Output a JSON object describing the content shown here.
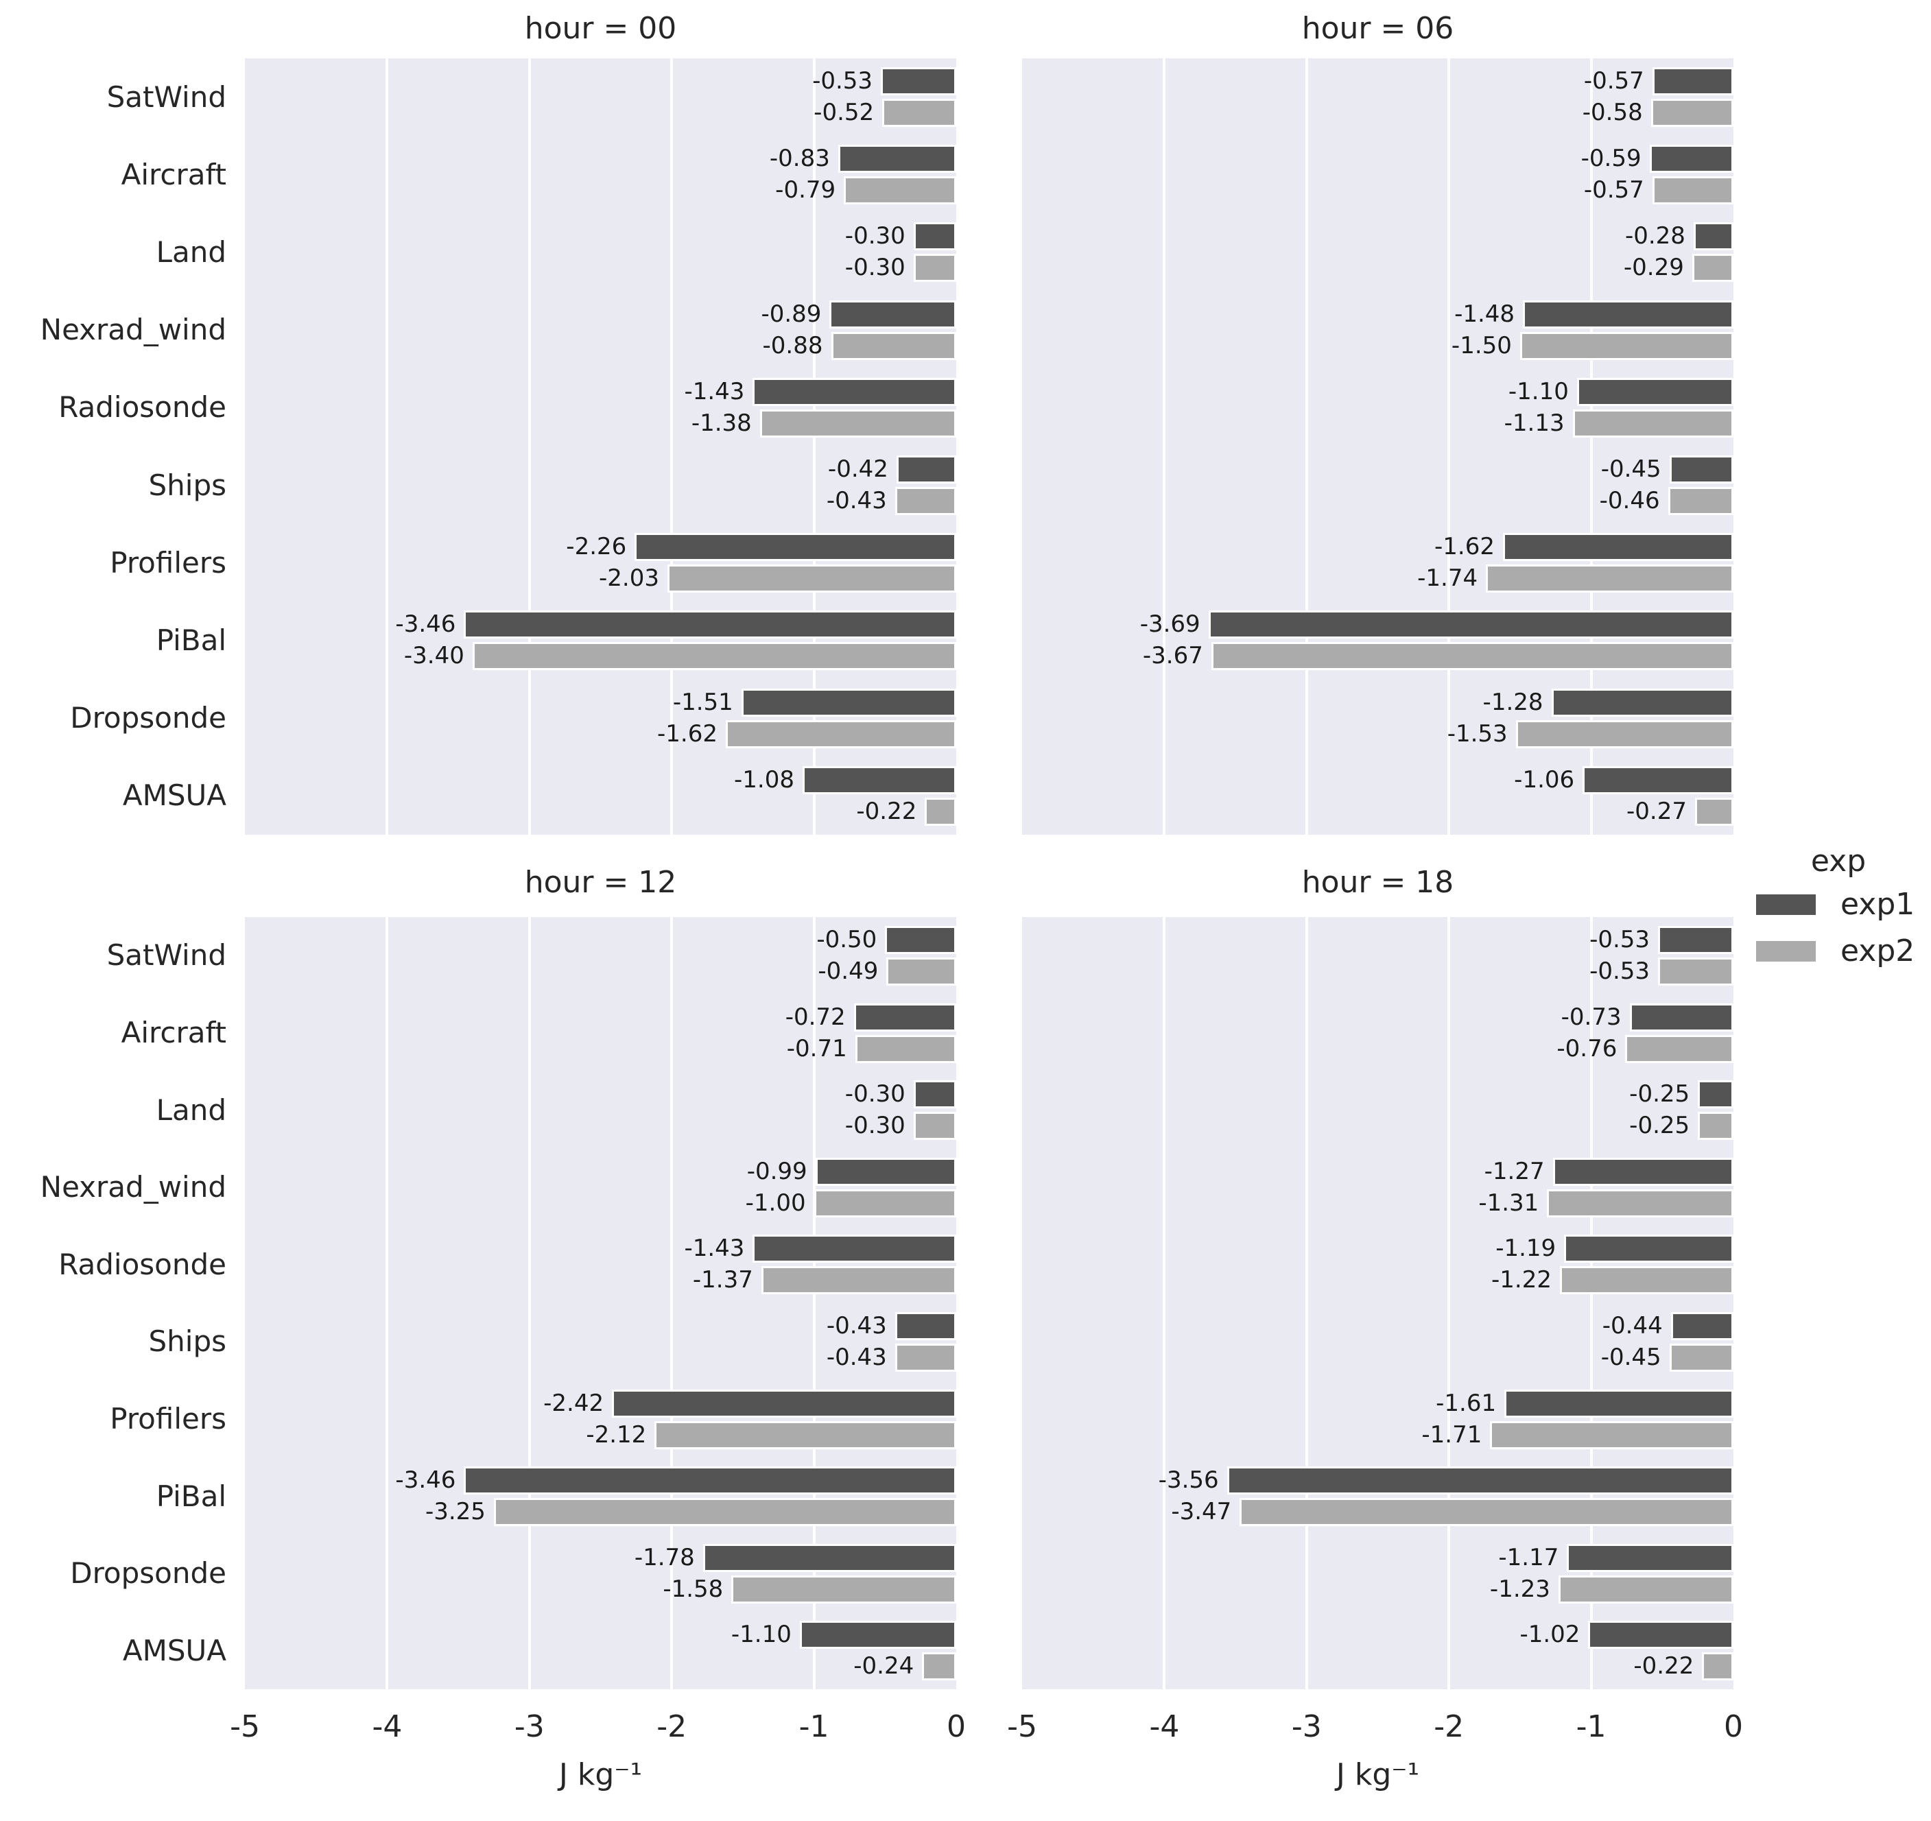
{
  "chart_data": {
    "type": "bar",
    "orientation": "horizontal",
    "xlabel": "J kg⁻¹",
    "xlim": [
      -5,
      0
    ],
    "xticks": [
      "-5",
      "-4",
      "-3",
      "-2",
      "-1",
      "0"
    ],
    "grid": "vertical-white-gridlines",
    "panel_background": "#eaeaf2",
    "value_label_decimals": 2,
    "categories": [
      "SatWind",
      "Aircraft",
      "Land",
      "Nexrad_wind",
      "Radiosonde",
      "Ships",
      "Profilers",
      "PiBal",
      "Dropsonde",
      "AMSUA"
    ],
    "legend": {
      "title": "exp",
      "position": "right",
      "entries": [
        {
          "label": "exp1",
          "color": "#545454"
        },
        {
          "label": "exp2",
          "color": "#ababab"
        }
      ]
    },
    "facets": [
      {
        "title": "hour = 00",
        "series": [
          {
            "name": "exp1",
            "values": [
              -0.53,
              -0.83,
              -0.3,
              -0.89,
              -1.43,
              -0.42,
              -2.26,
              -3.46,
              -1.51,
              -1.08
            ]
          },
          {
            "name": "exp2",
            "values": [
              -0.52,
              -0.79,
              -0.3,
              -0.88,
              -1.38,
              -0.43,
              -2.03,
              -3.4,
              -1.62,
              -0.22
            ]
          }
        ]
      },
      {
        "title": "hour = 06",
        "series": [
          {
            "name": "exp1",
            "values": [
              -0.57,
              -0.59,
              -0.28,
              -1.48,
              -1.1,
              -0.45,
              -1.62,
              -3.69,
              -1.28,
              -1.06
            ]
          },
          {
            "name": "exp2",
            "values": [
              -0.58,
              -0.57,
              -0.29,
              -1.5,
              -1.13,
              -0.46,
              -1.74,
              -3.67,
              -1.53,
              -0.27
            ]
          }
        ]
      },
      {
        "title": "hour = 12",
        "series": [
          {
            "name": "exp1",
            "values": [
              -0.5,
              -0.72,
              -0.3,
              -0.99,
              -1.43,
              -0.43,
              -2.42,
              -3.46,
              -1.78,
              -1.1
            ]
          },
          {
            "name": "exp2",
            "values": [
              -0.49,
              -0.71,
              -0.3,
              -1.0,
              -1.37,
              -0.43,
              -2.12,
              -3.25,
              -1.58,
              -0.24
            ]
          }
        ]
      },
      {
        "title": "hour = 18",
        "series": [
          {
            "name": "exp1",
            "values": [
              -0.53,
              -0.73,
              -0.25,
              -1.27,
              -1.19,
              -0.44,
              -1.61,
              -3.56,
              -1.17,
              -1.02
            ]
          },
          {
            "name": "exp2",
            "values": [
              -0.53,
              -0.76,
              -0.25,
              -1.31,
              -1.22,
              -0.45,
              -1.71,
              -3.47,
              -1.23,
              -0.22
            ]
          }
        ]
      }
    ]
  }
}
